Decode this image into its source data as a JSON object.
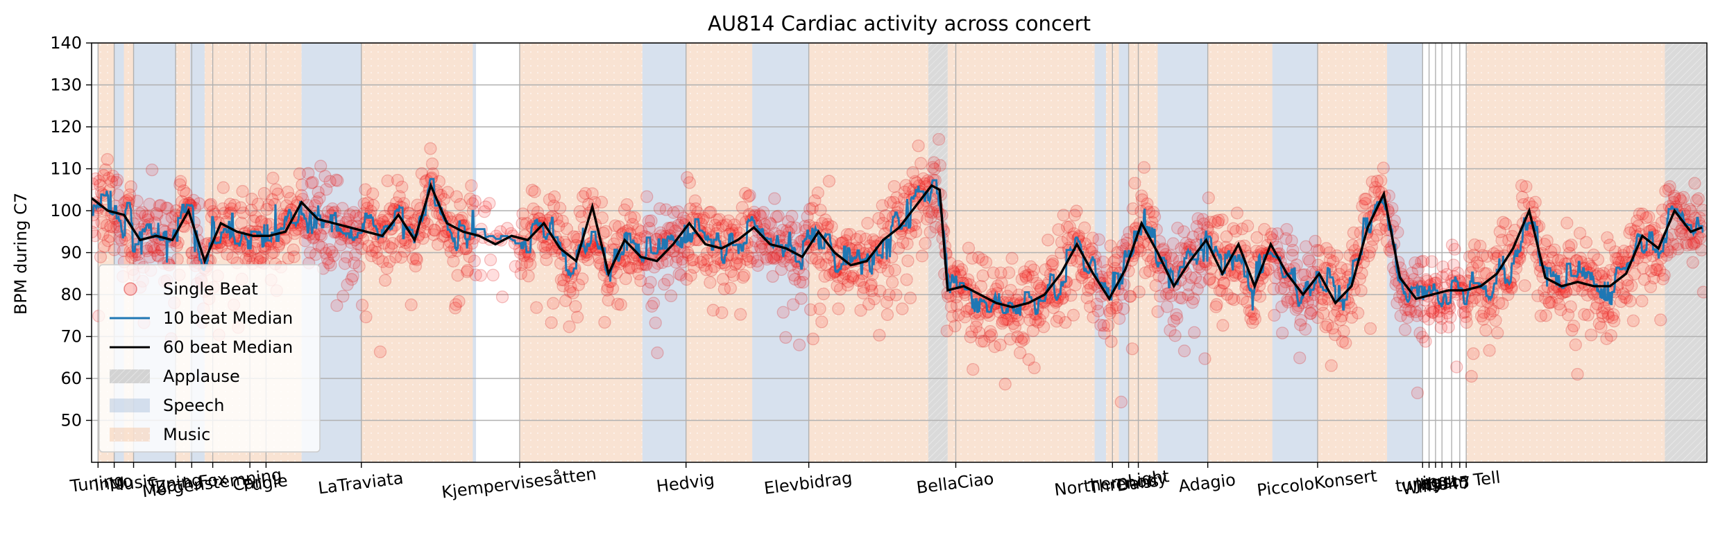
{
  "chart_data": {
    "type": "scatter",
    "title": "AU814 Cardiac activity across concert",
    "ylabel": "BPM during C7",
    "xlabel": "",
    "ylim": [
      40,
      140
    ],
    "xlim": [
      0,
      1000
    ],
    "yticks": [
      50,
      60,
      70,
      80,
      90,
      100,
      110,
      120,
      130,
      140
    ],
    "grid": true,
    "legend": {
      "placement": "lower-left",
      "entries": [
        {
          "label": "Single Beat",
          "kind": "marker",
          "color": "#ff0000"
        },
        {
          "label": "10 beat Median",
          "kind": "line",
          "color": "#1f77b4"
        },
        {
          "label": "60 beat Median",
          "kind": "line",
          "color": "#000000"
        },
        {
          "label": "Applause",
          "kind": "patch",
          "color": "#d3d3d3"
        },
        {
          "label": "Speech",
          "kind": "patch",
          "color": "#b0c4de"
        },
        {
          "label": "Music",
          "kind": "patch",
          "color": "#f4c8a8"
        }
      ]
    },
    "colors": {
      "scatter": "#ff0000",
      "median10": "#1f77b4",
      "median60": "#000000",
      "applause": "#d3d3d3",
      "speech": "#b0c4de",
      "music": "#f4c8a8"
    },
    "xticks": [
      {
        "label": "Tuning",
        "x": 4
      },
      {
        "label": "Intro",
        "x": 14
      },
      {
        "label": "Music",
        "x": 26
      },
      {
        "label": "Tuning",
        "x": 52
      },
      {
        "label": "Zoth Fox",
        "x": 62
      },
      {
        "label": "Morgenstemning",
        "x": 75
      },
      {
        "label": "Carl",
        "x": 98
      },
      {
        "label": "Fugle",
        "x": 108
      },
      {
        "label": "LaTraviata",
        "x": 167
      },
      {
        "label": "Kjempervisesåtten",
        "x": 265
      },
      {
        "label": "Hedvig",
        "x": 368
      },
      {
        "label": "Elevbidrag",
        "x": 444
      },
      {
        "label": "BellaCiao",
        "x": 535
      },
      {
        "label": "NorthernLight",
        "x": 632
      },
      {
        "label": "Threnody",
        "x": 642
      },
      {
        "label": "Dans",
        "x": 648
      },
      {
        "label": "Adagio",
        "x": 691
      },
      {
        "label": "PiccoloKonsert",
        "x": 759
      },
      {
        "label": "tuning",
        "x": 824
      },
      {
        "label": "Jeg",
        "x": 828
      },
      {
        "label": "Har",
        "x": 832
      },
      {
        "label": "Lyst",
        "x": 836
      },
      {
        "label": "Wilhelm Tell",
        "x": 842
      },
      {
        "label": "45",
        "x": 847
      },
      {
        "label": "7",
        "x": 851
      }
    ],
    "regions": [
      {
        "type": "music",
        "start": 4,
        "end": 14
      },
      {
        "type": "speech",
        "start": 14,
        "end": 20
      },
      {
        "type": "music",
        "start": 20,
        "end": 26
      },
      {
        "type": "speech",
        "start": 26,
        "end": 52
      },
      {
        "type": "music",
        "start": 52,
        "end": 61
      },
      {
        "type": "speech",
        "start": 61,
        "end": 70
      },
      {
        "type": "music",
        "start": 70,
        "end": 130
      },
      {
        "type": "speech",
        "start": 130,
        "end": 167
      },
      {
        "type": "music",
        "start": 167,
        "end": 236
      },
      {
        "type": "speech",
        "start": 236,
        "end": 238
      },
      {
        "type": "music",
        "start": 265,
        "end": 341
      },
      {
        "type": "speech",
        "start": 341,
        "end": 368
      },
      {
        "type": "music",
        "start": 368,
        "end": 409
      },
      {
        "type": "speech",
        "start": 409,
        "end": 444
      },
      {
        "type": "music",
        "start": 444,
        "end": 518
      },
      {
        "type": "applause",
        "start": 518,
        "end": 530
      },
      {
        "type": "music",
        "start": 530,
        "end": 621
      },
      {
        "type": "speech",
        "start": 621,
        "end": 628
      },
      {
        "type": "music",
        "start": 628,
        "end": 636
      },
      {
        "type": "speech",
        "start": 636,
        "end": 642
      },
      {
        "type": "music",
        "start": 642,
        "end": 660
      },
      {
        "type": "speech",
        "start": 660,
        "end": 691
      },
      {
        "type": "music",
        "start": 691,
        "end": 731
      },
      {
        "type": "speech",
        "start": 731,
        "end": 759
      },
      {
        "type": "music",
        "start": 759,
        "end": 802
      },
      {
        "type": "speech",
        "start": 802,
        "end": 824
      },
      {
        "type": "music",
        "start": 851,
        "end": 974
      },
      {
        "type": "applause",
        "start": 974,
        "end": 1000
      }
    ],
    "series": [
      {
        "name": "60 beat Median",
        "x": [
          0,
          10,
          20,
          30,
          40,
          50,
          60,
          70,
          80,
          90,
          100,
          110,
          120,
          130,
          140,
          150,
          160,
          170,
          180,
          190,
          200,
          210,
          220,
          230,
          240,
          250,
          260,
          270,
          280,
          290,
          300,
          310,
          320,
          330,
          340,
          350,
          360,
          370,
          380,
          390,
          400,
          410,
          420,
          430,
          440,
          450,
          460,
          470,
          480,
          490,
          500,
          510,
          520,
          525,
          530,
          540,
          550,
          560,
          570,
          580,
          590,
          600,
          610,
          620,
          630,
          640,
          650,
          660,
          670,
          680,
          690,
          700,
          710,
          720,
          730,
          740,
          750,
          760,
          770,
          780,
          790,
          800,
          810,
          820,
          830,
          840,
          850,
          860,
          870,
          880,
          890,
          900,
          910,
          920,
          930,
          940,
          950,
          960,
          970,
          980,
          990,
          997
        ],
        "values": [
          103,
          100,
          99,
          93,
          94,
          93,
          100,
          88,
          97,
          95,
          94,
          94,
          95,
          102,
          98,
          97,
          96,
          95,
          94,
          99,
          93,
          106,
          97,
          95,
          94,
          92,
          94,
          93,
          97,
          91,
          88,
          101,
          85,
          93,
          89,
          88,
          92,
          97,
          92,
          91,
          93,
          96,
          92,
          91,
          89,
          95,
          90,
          87,
          88,
          93,
          96,
          101,
          106,
          105,
          81,
          82,
          80,
          78,
          77,
          78,
          80,
          85,
          92,
          85,
          79,
          86,
          97,
          90,
          82,
          88,
          93,
          85,
          92,
          82,
          92,
          85,
          80,
          85,
          78,
          82,
          96,
          104,
          84,
          79,
          80,
          81,
          81,
          82,
          85,
          91,
          100,
          84,
          82,
          83,
          82,
          82,
          85,
          94,
          91,
          100,
          95,
          96
        ]
      }
    ]
  }
}
